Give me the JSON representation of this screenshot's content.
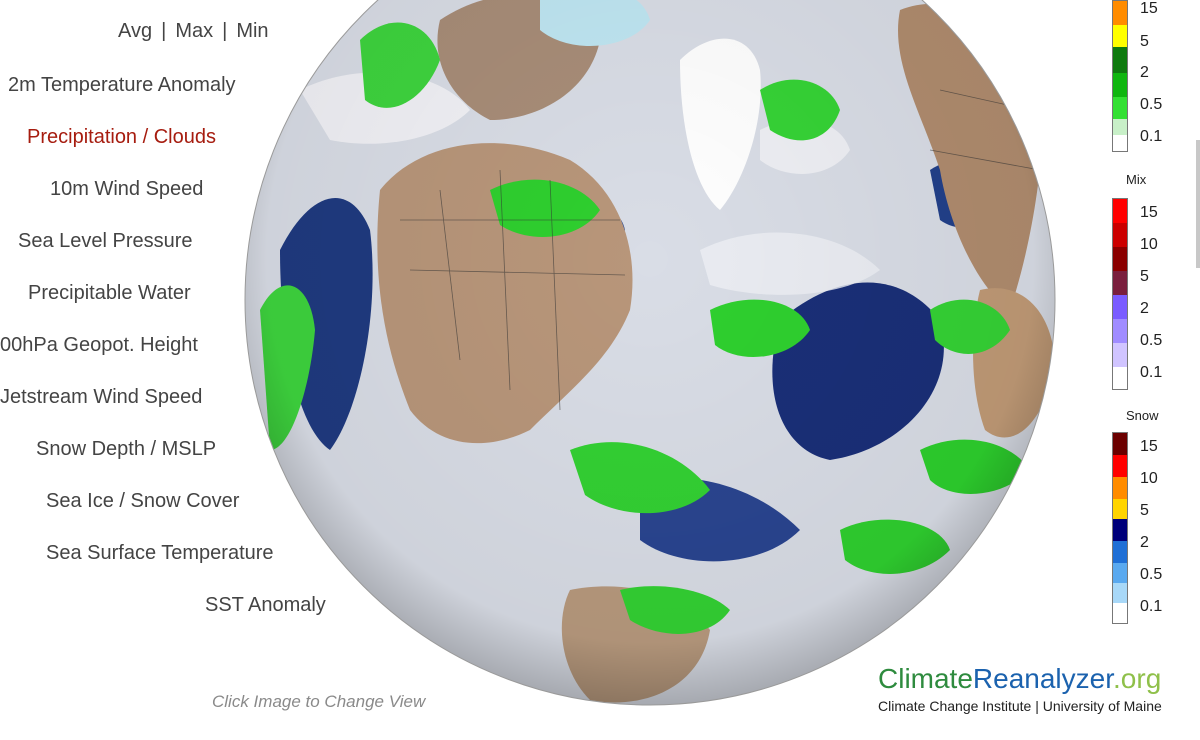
{
  "menu": {
    "stats": [
      "Avg",
      "Max",
      "Min"
    ],
    "separator": "|",
    "items": [
      {
        "label": "2m Temperature Anomaly",
        "active": false
      },
      {
        "label": "Precipitation / Clouds",
        "active": true
      },
      {
        "label": "10m Wind Speed",
        "active": false
      },
      {
        "label": "Sea Level Pressure",
        "active": false
      },
      {
        "label": "Precipitable Water",
        "active": false
      },
      {
        "label": "00hPa Geopot. Height",
        "active": false
      },
      {
        "label": "Jetstream Wind Speed",
        "active": false
      },
      {
        "label": "Snow Depth / MSLP",
        "active": false
      },
      {
        "label": "Sea Ice / Snow Cover",
        "active": false
      },
      {
        "label": "Sea Surface Temperature",
        "active": false
      },
      {
        "label": "SST Anomaly",
        "active": false
      }
    ]
  },
  "map": {
    "caption": "Click Image to Change View"
  },
  "legends": {
    "rain": {
      "title": "",
      "ticks": [
        "15",
        "5",
        "2",
        "0.5",
        "0.1"
      ],
      "colors": [
        "#ff8c00",
        "#ffff00",
        "#0e7a0e",
        "#0fb60f",
        "#33e033",
        "#c8f0c8",
        "#ffffff"
      ]
    },
    "mix": {
      "title": "Mix",
      "ticks": [
        "15",
        "10",
        "5",
        "2",
        "0.5",
        "0.1"
      ],
      "colors": [
        "#ff0000",
        "#cc0000",
        "#8b0000",
        "#7a1f3d",
        "#7a5cff",
        "#a08cff",
        "#d0c4ff",
        "#ffffff"
      ]
    },
    "snow": {
      "title": "Snow",
      "ticks": [
        "15",
        "10",
        "5",
        "2",
        "0.5",
        "0.1"
      ],
      "colors": [
        "#6b0000",
        "#ff0000",
        "#ff8c00",
        "#ffd400",
        "#00007a",
        "#1f6fd6",
        "#5aa9ef",
        "#a8d8f8",
        "#ffffff"
      ]
    }
  },
  "logo": {
    "part1": "Climate",
    "part2": "Reanalyzer",
    "part3": ".org",
    "subtitle": "Climate Change Institute | University of Maine"
  }
}
